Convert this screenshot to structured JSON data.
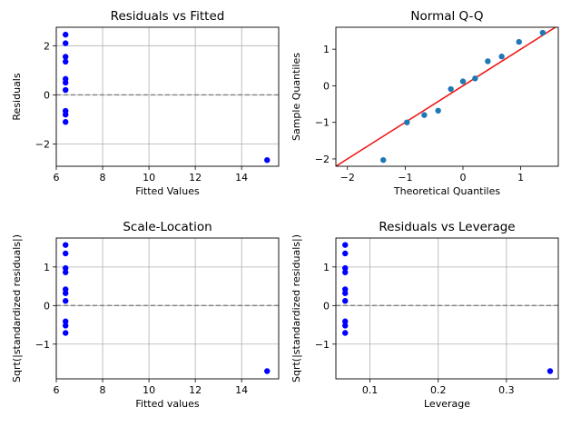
{
  "chart_data": [
    {
      "type": "scatter",
      "title": "Residuals vs Fitted",
      "xlabel": "Fitted Values",
      "ylabel": "Residuals",
      "xlim": [
        6.0,
        15.6
      ],
      "ylim": [
        -2.9,
        2.75
      ],
      "xticks": [
        6,
        8,
        10,
        12,
        14
      ],
      "yticks": [
        -2,
        0,
        2
      ],
      "grid": true,
      "hline": 0,
      "point_color": "#0000ff",
      "points": [
        {
          "x": 6.4,
          "y": 2.45
        },
        {
          "x": 6.4,
          "y": 2.1
        },
        {
          "x": 6.4,
          "y": 1.55
        },
        {
          "x": 6.4,
          "y": 1.35
        },
        {
          "x": 6.4,
          "y": 0.65
        },
        {
          "x": 6.4,
          "y": 0.5
        },
        {
          "x": 6.4,
          "y": 0.2
        },
        {
          "x": 6.4,
          "y": -0.65
        },
        {
          "x": 6.4,
          "y": -0.8
        },
        {
          "x": 6.4,
          "y": -1.1
        },
        {
          "x": 15.1,
          "y": -2.65
        }
      ]
    },
    {
      "type": "scatter",
      "title": "Normal Q-Q",
      "xlabel": "Theoretical Quantiles",
      "ylabel": "Sample Quantiles",
      "xlim": [
        -2.2,
        1.65
      ],
      "ylim": [
        -2.2,
        1.6
      ],
      "xticks": [
        -2,
        -1,
        0,
        1
      ],
      "yticks": [
        -2,
        -1,
        0,
        1
      ],
      "grid": false,
      "reference_line": {
        "slope": 1,
        "intercept": 0,
        "color": "#ee1111"
      },
      "point_color": "#1f77b4",
      "points": [
        {
          "x": -1.38,
          "y": -2.03
        },
        {
          "x": -0.97,
          "y": -1.0
        },
        {
          "x": -0.67,
          "y": -0.8
        },
        {
          "x": -0.43,
          "y": -0.68
        },
        {
          "x": -0.21,
          "y": -0.09
        },
        {
          "x": 0.0,
          "y": 0.12
        },
        {
          "x": 0.21,
          "y": 0.2
        },
        {
          "x": 0.43,
          "y": 0.67
        },
        {
          "x": 0.67,
          "y": 0.8
        },
        {
          "x": 0.97,
          "y": 1.2
        },
        {
          "x": 1.38,
          "y": 1.45
        }
      ]
    },
    {
      "type": "scatter",
      "title": "Scale-Location",
      "xlabel": "Fitted values",
      "ylabel": "Sqrt(|standardized residuals|)",
      "xlim": [
        6.0,
        15.6
      ],
      "ylim": [
        -1.9,
        1.75
      ],
      "xticks": [
        6,
        8,
        10,
        12,
        14
      ],
      "yticks": [
        -1,
        0,
        1
      ],
      "grid": true,
      "hline": 0,
      "point_color": "#0000ff",
      "points": [
        {
          "x": 6.4,
          "y": 1.57
        },
        {
          "x": 6.4,
          "y": 1.35
        },
        {
          "x": 6.4,
          "y": 0.97
        },
        {
          "x": 6.4,
          "y": 0.86
        },
        {
          "x": 6.4,
          "y": 0.42
        },
        {
          "x": 6.4,
          "y": 0.32
        },
        {
          "x": 6.4,
          "y": 0.12
        },
        {
          "x": 6.4,
          "y": -0.41
        },
        {
          "x": 6.4,
          "y": -0.52
        },
        {
          "x": 6.4,
          "y": -0.71
        },
        {
          "x": 15.1,
          "y": -1.7
        }
      ]
    },
    {
      "type": "scatter",
      "title": "Residuals vs Leverage",
      "xlabel": "Leverage",
      "ylabel": "Sqrt(|standardized residuals|)",
      "xlim": [
        0.05,
        0.376
      ],
      "ylim": [
        -1.9,
        1.75
      ],
      "xticks": [
        0.1,
        0.2,
        0.3
      ],
      "yticks": [
        -1,
        0,
        1
      ],
      "grid": true,
      "hline": 0,
      "point_color": "#0000ff",
      "points": [
        {
          "x": 0.0636,
          "y": 1.57
        },
        {
          "x": 0.0636,
          "y": 1.35
        },
        {
          "x": 0.0636,
          "y": 0.97
        },
        {
          "x": 0.0636,
          "y": 0.86
        },
        {
          "x": 0.0636,
          "y": 0.42
        },
        {
          "x": 0.0636,
          "y": 0.32
        },
        {
          "x": 0.0636,
          "y": 0.12
        },
        {
          "x": 0.0636,
          "y": -0.41
        },
        {
          "x": 0.0636,
          "y": -0.52
        },
        {
          "x": 0.0636,
          "y": -0.71
        },
        {
          "x": 0.364,
          "y": -1.7
        }
      ]
    }
  ]
}
